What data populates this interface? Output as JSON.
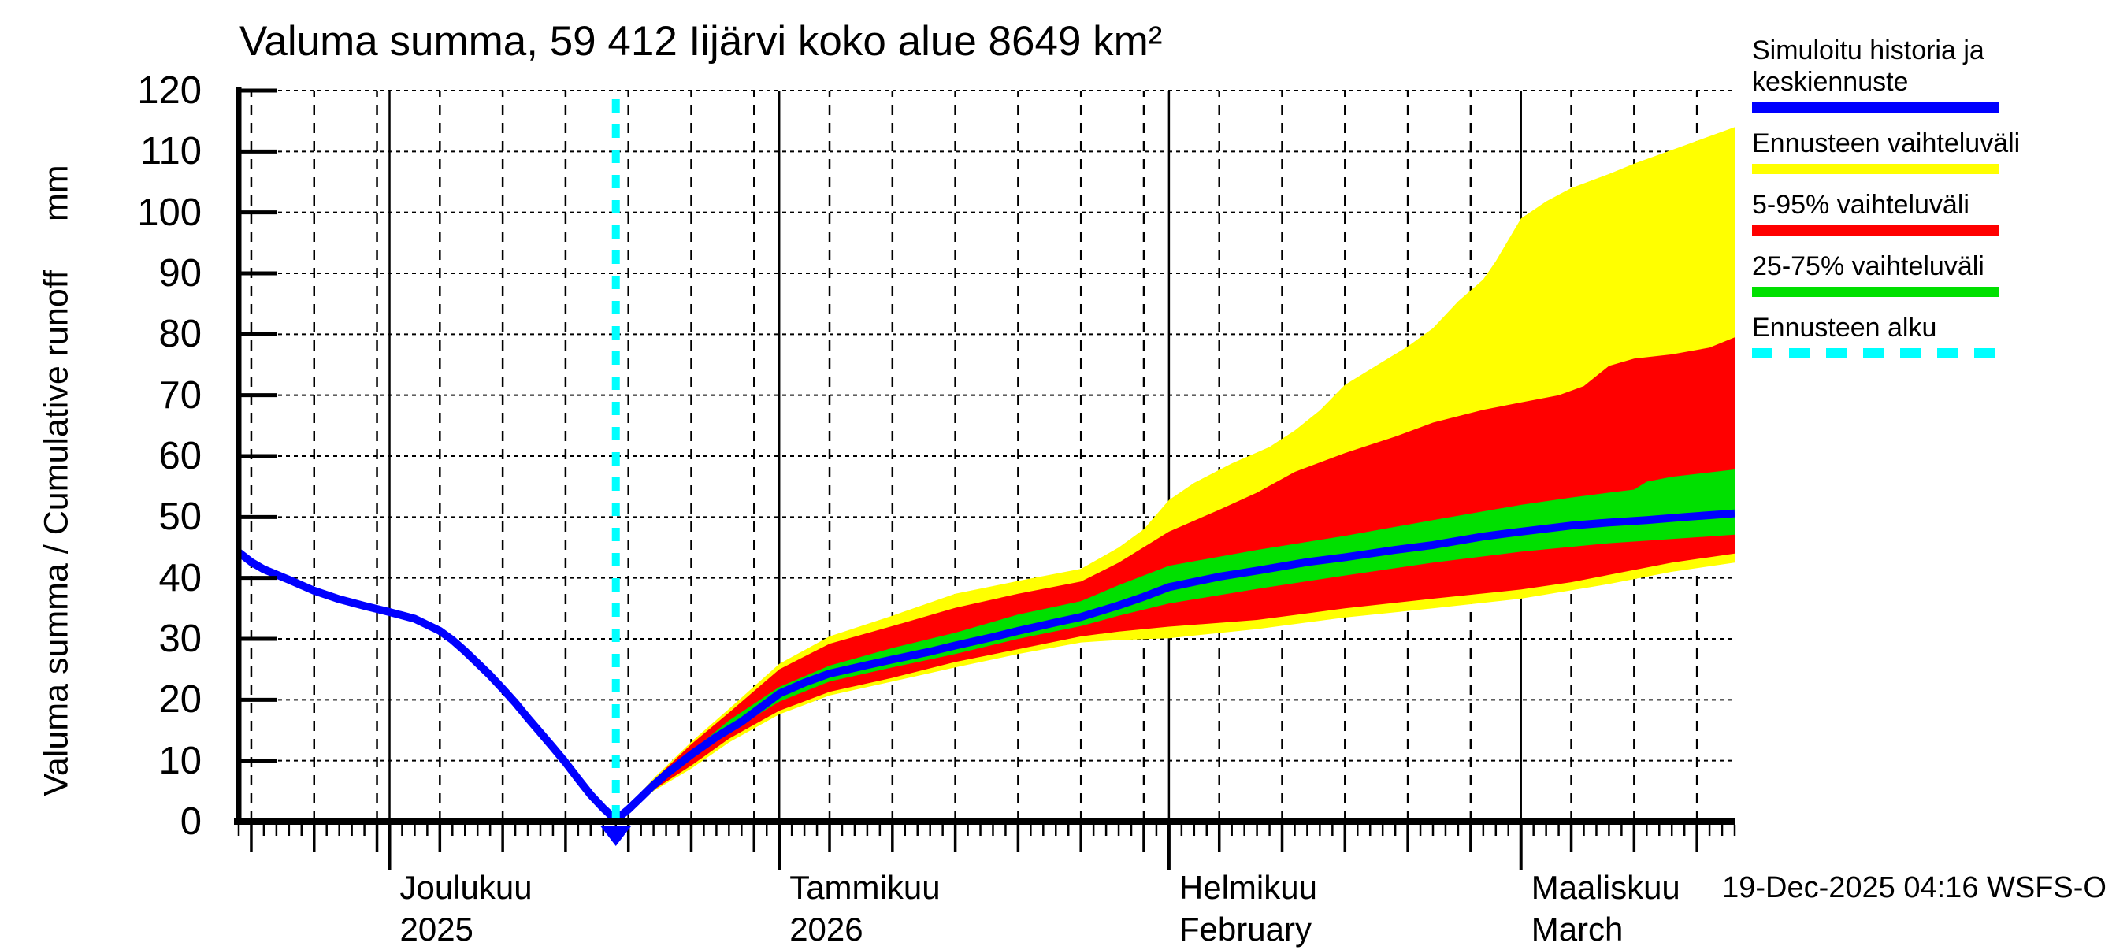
{
  "title": "Valuma summa, 59 412 Iijärvi koko alue 8649 km²",
  "timestamp": "19-Dec-2025 04:16 WSFS-O",
  "y_axis": {
    "label": "Valuma summa / Cumulative runoff",
    "unit": "mm"
  },
  "x_axis": {
    "months": [
      {
        "label": "Joulukuu",
        "sub": "2025",
        "t": 12
      },
      {
        "label": "Tammikuu",
        "sub": "2026",
        "t": 43
      },
      {
        "label": "Helmikuu",
        "sub": "February",
        "t": 74
      },
      {
        "label": "Maaliskuu",
        "sub": "March",
        "t": 102
      }
    ]
  },
  "legend": {
    "items": [
      {
        "label": "Simuloitu historia ja\nkeskiennuste",
        "color": "#0000ff",
        "dashed": false
      },
      {
        "label": "Ennusteen vaihteluväli",
        "color": "#ffff00",
        "dashed": false
      },
      {
        "label": "5-95% vaihteluväli",
        "color": "#ff0000",
        "dashed": false
      },
      {
        "label": "25-75% vaihteluväli",
        "color": "#00e000",
        "dashed": false
      },
      {
        "label": "Ennusteen alku",
        "color": "#00ffff",
        "dashed": true
      }
    ]
  },
  "colors": {
    "history_median": "#0000ff",
    "forecast_range": "#ffff00",
    "range_5_95": "#ff0000",
    "range_25_75": "#00e000",
    "forecast_start": "#00ffff",
    "grid": "#000000"
  },
  "chart_data": {
    "type": "line",
    "title": "Valuma summa, 59 412 Iijärvi koko alue 8649 km²",
    "xlabel_months": [
      "Joulukuu 2025",
      "Tammikuu 2026",
      "Helmikuu February",
      "Maaliskuu March"
    ],
    "ylabel": "Valuma summa / Cumulative runoff (mm)",
    "ylim": [
      0,
      120
    ],
    "x_unit": "days from 19-Nov-2025",
    "xlim": [
      0,
      119
    ],
    "forecast_start_day": 30,
    "y_ticks": [
      0,
      10,
      20,
      30,
      40,
      50,
      60,
      70,
      80,
      90,
      100,
      110,
      120
    ],
    "x_gridline_days": [
      1,
      6,
      11,
      16,
      21,
      26,
      31,
      36,
      41,
      47,
      52,
      57,
      62,
      67,
      72,
      78,
      83,
      88,
      93,
      98,
      106,
      111,
      116
    ],
    "x_month_days": [
      12,
      43,
      74,
      102
    ],
    "series": {
      "history": [
        [
          0,
          44.2
        ],
        [
          1,
          42.6
        ],
        [
          2,
          41.4
        ],
        [
          4,
          39.7
        ],
        [
          6,
          37.9
        ],
        [
          8,
          36.5
        ],
        [
          10,
          35.4
        ],
        [
          12,
          34.4
        ],
        [
          14,
          33.3
        ],
        [
          16,
          31.3
        ],
        [
          17,
          29.8
        ],
        [
          18,
          28.0
        ],
        [
          19,
          26.0
        ],
        [
          20,
          24.0
        ],
        [
          21,
          21.8
        ],
        [
          22,
          19.5
        ],
        [
          23,
          17.0
        ],
        [
          24,
          14.6
        ],
        [
          25,
          12.2
        ],
        [
          26,
          9.7
        ],
        [
          27,
          7.0
        ],
        [
          28,
          4.4
        ],
        [
          29,
          2.2
        ],
        [
          30,
          0.3
        ]
      ],
      "median": [
        [
          30,
          0.3
        ],
        [
          31,
          2.0
        ],
        [
          32,
          4.0
        ],
        [
          33,
          6.0
        ],
        [
          34,
          7.8
        ],
        [
          36,
          11.0
        ],
        [
          38,
          13.9
        ],
        [
          40,
          16.4
        ],
        [
          43,
          21.0
        ],
        [
          45,
          22.8
        ],
        [
          47,
          24.3
        ],
        [
          50,
          25.7
        ],
        [
          52,
          26.6
        ],
        [
          55,
          27.9
        ],
        [
          57,
          28.9
        ],
        [
          60,
          30.3
        ],
        [
          62,
          31.3
        ],
        [
          65,
          32.7
        ],
        [
          67,
          33.6
        ],
        [
          70,
          35.5
        ],
        [
          72,
          36.9
        ],
        [
          74,
          38.5
        ],
        [
          78,
          40.2
        ],
        [
          81,
          41.2
        ],
        [
          85,
          42.6
        ],
        [
          88,
          43.4
        ],
        [
          92,
          44.6
        ],
        [
          95,
          45.4
        ],
        [
          99,
          46.8
        ],
        [
          102,
          47.6
        ],
        [
          106,
          48.6
        ],
        [
          109,
          49.1
        ],
        [
          112,
          49.5
        ],
        [
          115,
          50.0
        ],
        [
          119,
          50.6
        ]
      ],
      "p75": [
        [
          30,
          0.3
        ],
        [
          33,
          6.3
        ],
        [
          36,
          11.5
        ],
        [
          39,
          16.6
        ],
        [
          43,
          22.1
        ],
        [
          47,
          25.6
        ],
        [
          52,
          28.5
        ],
        [
          57,
          31.0
        ],
        [
          62,
          34.0
        ],
        [
          67,
          36.2
        ],
        [
          70,
          38.8
        ],
        [
          74,
          42.0
        ],
        [
          81,
          44.6
        ],
        [
          88,
          46.9
        ],
        [
          95,
          49.5
        ],
        [
          102,
          52.0
        ],
        [
          106,
          53.2
        ],
        [
          109,
          54.0
        ],
        [
          111,
          54.5
        ],
        [
          112,
          55.8
        ],
        [
          114,
          56.6
        ],
        [
          119,
          57.8
        ]
      ],
      "p25": [
        [
          30,
          0.3
        ],
        [
          33,
          5.7
        ],
        [
          36,
          10.3
        ],
        [
          39,
          14.7
        ],
        [
          43,
          19.7
        ],
        [
          47,
          23.0
        ],
        [
          52,
          25.3
        ],
        [
          57,
          27.5
        ],
        [
          62,
          30.0
        ],
        [
          67,
          32.1
        ],
        [
          70,
          33.8
        ],
        [
          74,
          35.8
        ],
        [
          81,
          38.2
        ],
        [
          88,
          40.4
        ],
        [
          95,
          42.5
        ],
        [
          102,
          44.3
        ],
        [
          109,
          45.7
        ],
        [
          114,
          46.4
        ],
        [
          119,
          47.1
        ]
      ],
      "p95": [
        [
          30,
          0.3
        ],
        [
          33,
          6.8
        ],
        [
          36,
          12.7
        ],
        [
          39,
          17.9
        ],
        [
          43,
          25.0
        ],
        [
          47,
          29.2
        ],
        [
          52,
          32.1
        ],
        [
          57,
          35.1
        ],
        [
          62,
          37.4
        ],
        [
          67,
          39.4
        ],
        [
          70,
          42.5
        ],
        [
          74,
          47.6
        ],
        [
          78,
          51.2
        ],
        [
          81,
          54.0
        ],
        [
          84,
          57.4
        ],
        [
          88,
          60.5
        ],
        [
          92,
          63.2
        ],
        [
          95,
          65.5
        ],
        [
          99,
          67.6
        ],
        [
          102,
          68.8
        ],
        [
          105,
          70.0
        ],
        [
          107,
          71.5
        ],
        [
          109,
          74.8
        ],
        [
          111,
          76.0
        ],
        [
          114,
          76.7
        ],
        [
          117,
          77.8
        ],
        [
          119,
          79.5
        ]
      ],
      "p05": [
        [
          30,
          0.3
        ],
        [
          33,
          5.2
        ],
        [
          36,
          9.2
        ],
        [
          39,
          13.6
        ],
        [
          43,
          18.2
        ],
        [
          47,
          21.3
        ],
        [
          52,
          23.6
        ],
        [
          57,
          26.2
        ],
        [
          62,
          28.3
        ],
        [
          67,
          30.4
        ],
        [
          70,
          31.2
        ],
        [
          74,
          32.0
        ],
        [
          81,
          33.1
        ],
        [
          88,
          35.0
        ],
        [
          95,
          36.6
        ],
        [
          102,
          38.1
        ],
        [
          106,
          39.3
        ],
        [
          109,
          40.5
        ],
        [
          114,
          42.5
        ],
        [
          119,
          44.0
        ]
      ],
      "range_high": [
        [
          30,
          0.3
        ],
        [
          33,
          7.1
        ],
        [
          36,
          13.1
        ],
        [
          39,
          18.5
        ],
        [
          43,
          25.9
        ],
        [
          47,
          30.4
        ],
        [
          52,
          33.8
        ],
        [
          57,
          37.4
        ],
        [
          62,
          39.5
        ],
        [
          67,
          41.5
        ],
        [
          70,
          45.0
        ],
        [
          72,
          48.0
        ],
        [
          74,
          52.8
        ],
        [
          76,
          55.6
        ],
        [
          79,
          58.8
        ],
        [
          82,
          61.5
        ],
        [
          84,
          64.2
        ],
        [
          86,
          67.5
        ],
        [
          88,
          71.7
        ],
        [
          91,
          75.5
        ],
        [
          93,
          78.0
        ],
        [
          95,
          81.0
        ],
        [
          97,
          85.4
        ],
        [
          99,
          89.0
        ],
        [
          100,
          92.0
        ],
        [
          102,
          99.0
        ],
        [
          104,
          101.8
        ],
        [
          106,
          104.0
        ],
        [
          109,
          106.3
        ],
        [
          111,
          108.0
        ],
        [
          115,
          111.0
        ],
        [
          119,
          114.0
        ]
      ],
      "range_low": [
        [
          30,
          0.3
        ],
        [
          33,
          5.0
        ],
        [
          36,
          8.7
        ],
        [
          39,
          13.0
        ],
        [
          43,
          17.6
        ],
        [
          47,
          20.7
        ],
        [
          52,
          23.0
        ],
        [
          57,
          25.3
        ],
        [
          62,
          27.5
        ],
        [
          67,
          29.4
        ],
        [
          70,
          29.8
        ],
        [
          74,
          30.1
        ],
        [
          81,
          31.6
        ],
        [
          88,
          33.5
        ],
        [
          95,
          35.0
        ],
        [
          102,
          36.6
        ],
        [
          109,
          39.0
        ],
        [
          114,
          41.0
        ],
        [
          119,
          42.5
        ]
      ]
    },
    "legend_entries": [
      "Simuloitu historia ja keskiennuste",
      "Ennusteen vaihteluväli",
      "5-95% vaihteluväli",
      "25-75% vaihteluväli",
      "Ennusteen alku"
    ],
    "grid": true,
    "legend_position": "outside-right-top"
  }
}
